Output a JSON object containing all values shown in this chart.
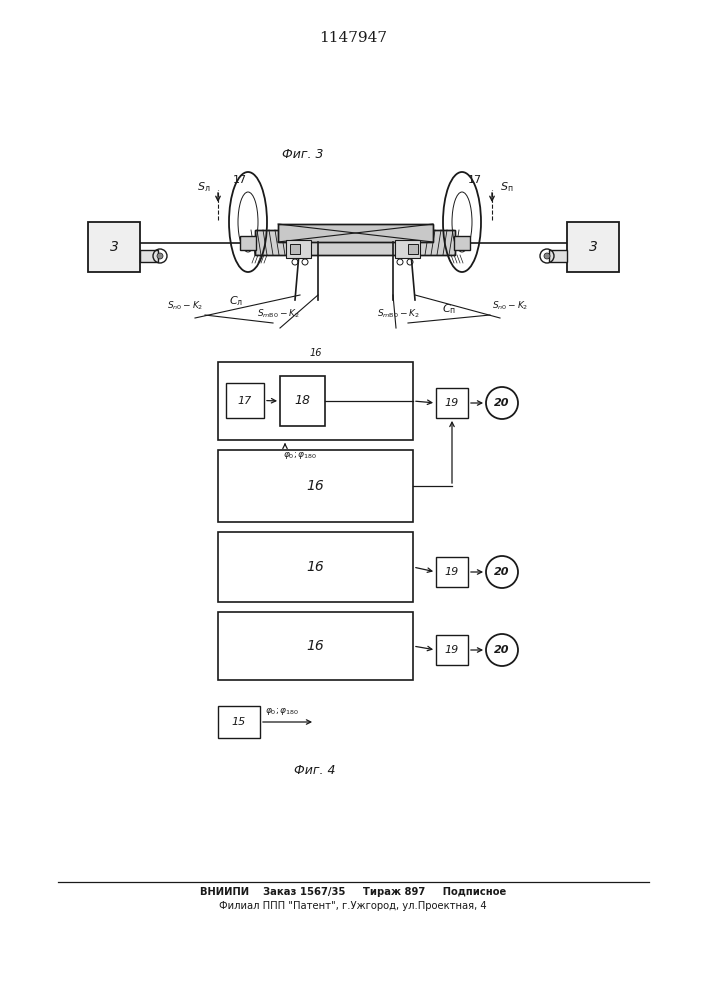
{
  "title": "1147947",
  "bg_color": "#ffffff",
  "line_color": "#1a1a1a",
  "fig3_caption": "Фиг. 3",
  "fig4_caption": "Фиг. 4",
  "footer_line1": "ВНИИПИ    Заказ 1567/35     Тираж 897     Подписное",
  "footer_line2": "Филиал ППП \"Патент\", г.Ужгород, ул.Проектная, 4"
}
